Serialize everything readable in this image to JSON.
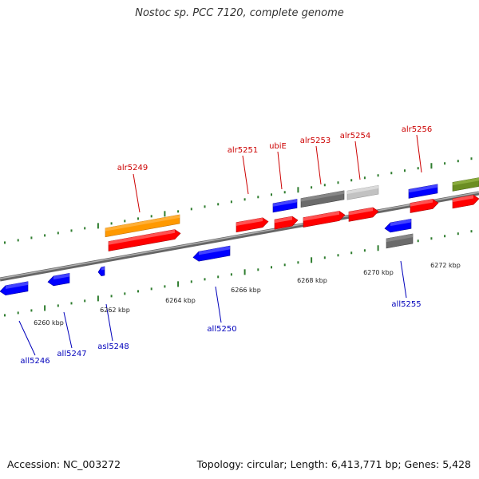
{
  "title": "Nostoc sp. PCC 7120, complete genome",
  "footer": {
    "accession": "Accession: NC_003272",
    "summary": "Topology: circular; Length: 6,413,771 bp; Genes: 5,428"
  },
  "colors": {
    "backbone": "#888888",
    "tick": "#2f7d2f",
    "forward_label": "#cc0000",
    "reverse_label": "#0000bb"
  },
  "scale_labels": [
    "6260 kbp",
    "6262 kbp",
    "6264 kbp",
    "6266 kbp",
    "6268 kbp",
    "6270 kbp",
    "6272 kbp"
  ],
  "genes": [
    {
      "name": "alr5249",
      "strand": "+",
      "color": "orange"
    },
    {
      "name": "alr5251",
      "strand": "+",
      "color": "red"
    },
    {
      "name": "ubiE",
      "strand": "+",
      "color": "blue"
    },
    {
      "name": "alr5253",
      "strand": "+",
      "color": "gray"
    },
    {
      "name": "alr5254",
      "strand": "+",
      "color": "lightgray"
    },
    {
      "name": "alr5256",
      "strand": "+",
      "color": "blue"
    },
    {
      "name": "all5246",
      "strand": "-",
      "color": "blue"
    },
    {
      "name": "all5247",
      "strand": "-",
      "color": "blue"
    },
    {
      "name": "asl5248",
      "strand": "-",
      "color": "blue"
    },
    {
      "name": "all5250",
      "strand": "-",
      "color": "blue"
    },
    {
      "name": "all5255",
      "strand": "-",
      "color": "blue"
    }
  ]
}
